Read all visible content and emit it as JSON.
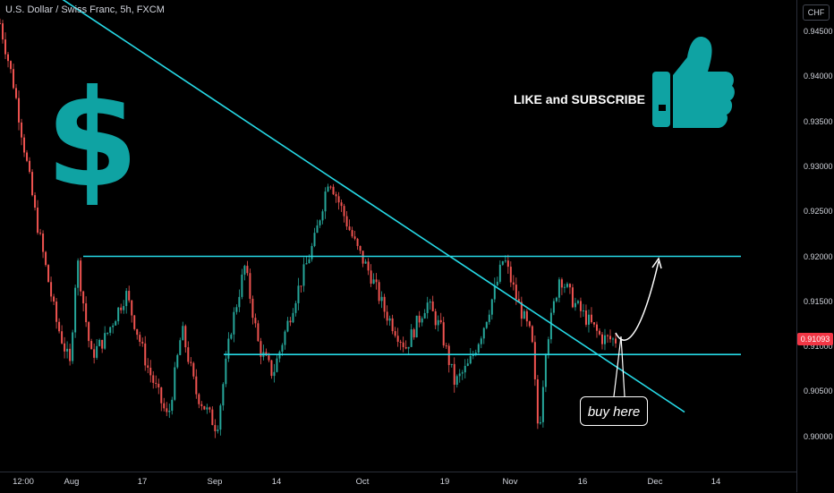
{
  "header": {
    "title": "U.S. Dollar / Swiss Franc, 5h, FXCM"
  },
  "axis": {
    "currency": "CHF",
    "last_price": "0.91093"
  },
  "annotations": {
    "like_text": "LIKE and SUBSCRIBE",
    "buy_text": "buy here"
  },
  "icons": [
    "dollar-icon",
    "thumbs-up-icon"
  ],
  "colors": {
    "up": "#26a69a",
    "down": "#ef5350",
    "line": "#26d9e6",
    "icon": "#0fa3a3",
    "last": "#f23645"
  },
  "chart_data": {
    "type": "line",
    "title": "U.S. Dollar / Swiss Franc, 5h, FXCM",
    "ylim": [
      0.8955,
      0.9475
    ],
    "y_ticks": [
      "0.94500",
      "0.94000",
      "0.93500",
      "0.93000",
      "0.92500",
      "0.92000",
      "0.91500",
      "0.91000",
      "0.90500",
      "0.90000"
    ],
    "x_ticks": [
      "12:00",
      "Aug",
      "17",
      "Sep",
      "14",
      "Oct",
      "19",
      "Nov",
      "16",
      "Dec",
      "14"
    ],
    "price_path": [
      [
        0.0,
        0.946
      ],
      [
        0.02,
        0.939
      ],
      [
        0.05,
        0.925
      ],
      [
        0.08,
        0.913
      ],
      [
        0.1,
        0.908
      ],
      [
        0.11,
        0.92
      ],
      [
        0.13,
        0.909
      ],
      [
        0.15,
        0.911
      ],
      [
        0.18,
        0.916
      ],
      [
        0.21,
        0.908
      ],
      [
        0.24,
        0.902
      ],
      [
        0.26,
        0.912
      ],
      [
        0.28,
        0.905
      ],
      [
        0.31,
        0.901
      ],
      [
        0.33,
        0.912
      ],
      [
        0.35,
        0.919
      ],
      [
        0.37,
        0.91
      ],
      [
        0.39,
        0.907
      ],
      [
        0.42,
        0.915
      ],
      [
        0.45,
        0.922
      ],
      [
        0.47,
        0.929
      ],
      [
        0.49,
        0.925
      ],
      [
        0.51,
        0.921
      ],
      [
        0.53,
        0.918
      ],
      [
        0.55,
        0.914
      ],
      [
        0.58,
        0.91
      ],
      [
        0.61,
        0.915
      ],
      [
        0.63,
        0.912
      ],
      [
        0.65,
        0.906
      ],
      [
        0.67,
        0.908
      ],
      [
        0.69,
        0.912
      ],
      [
        0.71,
        0.917
      ],
      [
        0.72,
        0.92
      ],
      [
        0.74,
        0.915
      ],
      [
        0.76,
        0.911
      ],
      [
        0.77,
        0.9
      ],
      [
        0.78,
        0.91
      ],
      [
        0.8,
        0.918
      ],
      [
        0.82,
        0.915
      ],
      [
        0.84,
        0.913
      ],
      [
        0.86,
        0.911
      ],
      [
        0.88,
        0.9108
      ]
    ],
    "resistance": 0.9201,
    "support": 0.9092,
    "trendline": {
      "start": 0.9493,
      "end": 0.9028
    }
  }
}
